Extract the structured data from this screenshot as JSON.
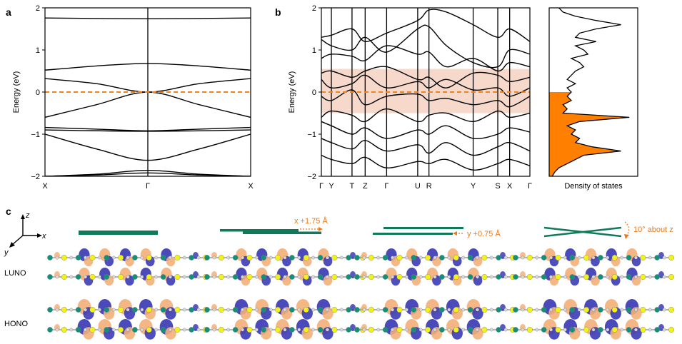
{
  "panels": {
    "a": "a",
    "b": "b",
    "c": "c"
  },
  "colors": {
    "band": "#000000",
    "fermi": "#f0821e",
    "dos_fill": "#ff8000",
    "highlight": "#f6d9cb",
    "teal": "#0e7a5a",
    "orb_blue": "#3b3bb5",
    "orb_orange": "#f3b07a",
    "atom_yellow": "#f2f21a",
    "atom_teal": "#11907a"
  },
  "chart_data": [
    {
      "type": "line",
      "panel": "a",
      "ylabel": "Energy (eV)",
      "ylim": [
        -2,
        2
      ],
      "yticks": [
        "2",
        "1",
        "0",
        "−1",
        "−2"
      ],
      "kpoints": [
        "X",
        "Γ",
        "X"
      ],
      "fermi_level": 0,
      "series": [
        {
          "x": [
            0,
            0.5,
            1
          ],
          "y": [
            1.76,
            1.74,
            1.76
          ]
        },
        {
          "x": [
            0,
            0.25,
            0.5,
            0.75,
            1
          ],
          "y": [
            0.52,
            0.62,
            0.68,
            0.62,
            0.52
          ]
        },
        {
          "x": [
            0,
            0.25,
            0.5,
            0.75,
            1
          ],
          "y": [
            0.32,
            0.2,
            0.0,
            0.2,
            0.32
          ]
        },
        {
          "x": [
            0,
            0.25,
            0.5,
            0.75,
            1
          ],
          "y": [
            -0.6,
            -0.3,
            0.0,
            -0.3,
            -0.6
          ]
        },
        {
          "x": [
            0,
            0.25,
            0.5,
            0.75,
            1
          ],
          "y": [
            -0.84,
            -0.88,
            -0.92,
            -0.88,
            -0.84
          ]
        },
        {
          "x": [
            0,
            0.5,
            1
          ],
          "y": [
            -0.9,
            -0.93,
            -0.9
          ]
        },
        {
          "x": [
            0,
            0.25,
            0.5,
            0.75,
            1
          ],
          "y": [
            -1.0,
            -1.35,
            -1.62,
            -1.35,
            -1.0
          ]
        },
        {
          "x": [
            0,
            0.25,
            0.5,
            0.75,
            1
          ],
          "y": [
            -2.0,
            -1.95,
            -1.86,
            -1.95,
            -2.0
          ]
        },
        {
          "x": [
            0,
            0.25,
            0.5,
            0.75,
            1
          ],
          "y": [
            -2.0,
            -1.97,
            -1.92,
            -1.97,
            -2.0
          ]
        }
      ]
    },
    {
      "type": "line",
      "panel": "b",
      "ylabel": "Energy (eV)",
      "ylim": [
        -2,
        2
      ],
      "yticks": [
        "2",
        "1",
        "0",
        "−1",
        "−2"
      ],
      "kpoints": [
        "Γ",
        "Y",
        "T",
        "Z",
        "Γ",
        "U",
        "R",
        "Y",
        "S",
        "X",
        "Γ"
      ],
      "kpos": [
        0,
        0.048,
        0.147,
        0.21,
        0.313,
        0.462,
        0.516,
        0.728,
        0.846,
        0.903,
        1
      ],
      "fermi_level": 0,
      "highlight": [
        -0.5,
        0.55
      ],
      "series": [
        {
          "x": [
            0,
            0.048,
            0.147,
            0.21,
            0.313,
            0.462,
            0.516,
            0.6,
            0.728,
            0.846,
            0.903,
            1
          ],
          "y": [
            1.3,
            1.35,
            1.5,
            1.2,
            1.4,
            1.7,
            1.95,
            1.9,
            1.6,
            1.3,
            1.5,
            1.2
          ]
        },
        {
          "x": [
            0,
            0.048,
            0.147,
            0.21,
            0.313,
            0.462,
            0.516,
            0.6,
            0.728,
            0.846,
            0.903,
            1
          ],
          "y": [
            1.25,
            1.1,
            1.0,
            1.3,
            0.95,
            1.5,
            1.55,
            1.1,
            0.7,
            0.6,
            1.0,
            0.9
          ]
        },
        {
          "x": [
            0,
            0.048,
            0.147,
            0.21,
            0.313,
            0.462,
            0.516,
            0.6,
            0.728,
            0.846,
            0.903,
            1
          ],
          "y": [
            0.8,
            0.9,
            0.85,
            0.75,
            1.1,
            0.9,
            0.95,
            0.6,
            0.8,
            0.5,
            0.7,
            0.6
          ]
        },
        {
          "x": [
            0,
            0.048,
            0.147,
            0.21,
            0.313,
            0.462,
            0.516,
            0.6,
            0.728,
            0.846,
            0.903,
            1
          ],
          "y": [
            0.45,
            0.5,
            0.35,
            0.5,
            0.6,
            0.3,
            0.35,
            0.1,
            0.45,
            0.4,
            0.25,
            0.35
          ]
        },
        {
          "x": [
            0,
            0.048,
            0.147,
            0.21,
            0.313,
            0.462,
            0.516,
            0.6,
            0.728,
            0.846,
            0.903,
            1
          ],
          "y": [
            0.3,
            0.1,
            0.2,
            0.4,
            0.1,
            0.25,
            0.1,
            0.3,
            0.05,
            0.1,
            -0.1,
            0.1
          ]
        },
        {
          "x": [
            0,
            0.048,
            0.147,
            0.21,
            0.313,
            0.462,
            0.516,
            0.6,
            0.728,
            0.846,
            0.903,
            1
          ],
          "y": [
            -0.1,
            -0.2,
            0.05,
            -0.3,
            -0.1,
            -0.05,
            -0.2,
            -0.15,
            -0.3,
            -0.2,
            -0.35,
            -0.1
          ]
        },
        {
          "x": [
            0,
            0.048,
            0.147,
            0.21,
            0.313,
            0.462,
            0.516,
            0.6,
            0.728,
            0.846,
            0.903,
            1
          ],
          "y": [
            -0.6,
            -0.45,
            -0.55,
            -0.7,
            -0.4,
            -0.7,
            -0.55,
            -0.5,
            -0.7,
            -0.45,
            -0.6,
            -0.5
          ]
        },
        {
          "x": [
            0,
            0.048,
            0.147,
            0.21,
            0.313,
            0.462,
            0.516,
            0.6,
            0.728,
            0.846,
            0.903,
            1
          ],
          "y": [
            -0.7,
            -0.8,
            -1.0,
            -0.85,
            -1.1,
            -0.9,
            -1.0,
            -0.8,
            -1.1,
            -1.0,
            -0.85,
            -0.95
          ]
        },
        {
          "x": [
            0,
            0.048,
            0.147,
            0.21,
            0.313,
            0.462,
            0.516,
            0.6,
            0.728,
            0.846,
            0.903,
            1
          ],
          "y": [
            -1.1,
            -1.2,
            -1.35,
            -1.15,
            -1.4,
            -1.25,
            -1.45,
            -1.2,
            -1.5,
            -1.3,
            -1.2,
            -1.4
          ]
        },
        {
          "x": [
            0,
            0.048,
            0.147,
            0.21,
            0.313,
            0.462,
            0.516,
            0.6,
            0.728,
            0.846,
            0.903,
            1
          ],
          "y": [
            -1.5,
            -1.6,
            -1.7,
            -1.55,
            -1.8,
            -1.65,
            -1.7,
            -1.6,
            -1.85,
            -1.7,
            -1.6,
            -1.75
          ]
        }
      ]
    },
    {
      "type": "area",
      "panel": "dos",
      "xlabel": "Density of states",
      "ylim": [
        -2,
        2
      ],
      "fill_below": 0,
      "y": [
        2.0,
        1.9,
        1.8,
        1.7,
        1.6,
        1.5,
        1.4,
        1.3,
        1.2,
        1.1,
        1.0,
        0.9,
        0.8,
        0.7,
        0.6,
        0.5,
        0.4,
        0.3,
        0.2,
        0.1,
        0.0,
        -0.1,
        -0.2,
        -0.3,
        -0.4,
        -0.5,
        -0.6,
        -0.7,
        -0.8,
        -0.9,
        -1.0,
        -1.1,
        -1.2,
        -1.3,
        -1.4,
        -1.5,
        -1.6,
        -1.7,
        -1.8,
        -1.9,
        -2.0
      ],
      "values": [
        0.1,
        0.15,
        0.3,
        0.55,
        0.85,
        0.55,
        0.35,
        0.3,
        0.55,
        0.3,
        0.4,
        0.45,
        0.25,
        0.35,
        0.4,
        0.3,
        0.25,
        0.2,
        0.3,
        0.2,
        0.25,
        0.2,
        0.25,
        0.15,
        0.2,
        0.15,
        0.95,
        0.35,
        0.2,
        0.3,
        0.25,
        0.35,
        0.3,
        0.5,
        0.85,
        0.4,
        0.3,
        0.2,
        0.1,
        0.05,
        0.02
      ]
    }
  ],
  "panel_c": {
    "axes": {
      "z": "z",
      "x": "x",
      "y": "y"
    },
    "rows": [
      "LUNO",
      "HONO"
    ],
    "shifts": [
      "",
      "x +1.75 Å",
      "y +0.75 Å",
      "10° about z"
    ]
  }
}
